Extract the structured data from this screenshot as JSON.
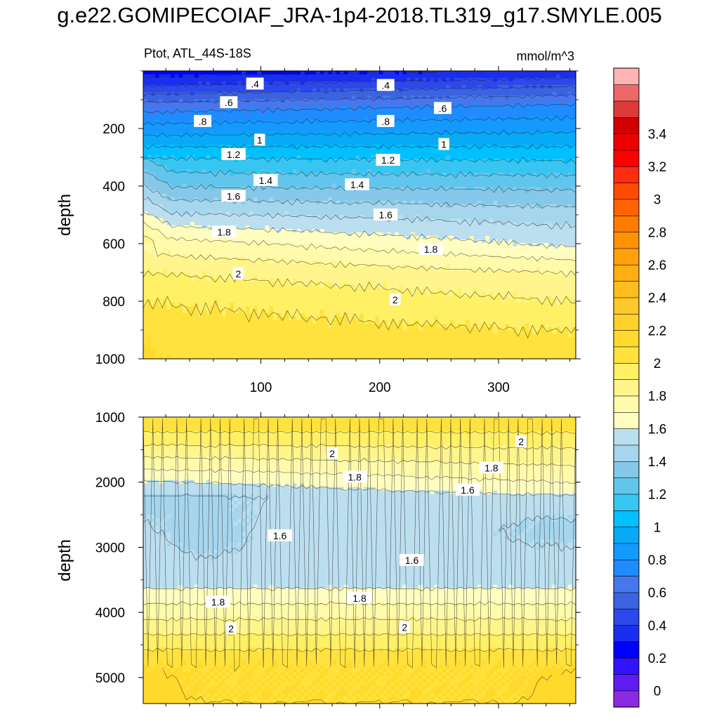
{
  "title": "g.e22.GOMIPECOIAF_JRA-1p4-2018.TL319_g17.SMYLE.005",
  "chart_data": {
    "type": "contour",
    "variable_label": "Ptot, ATL_44S-18S",
    "units": "mmol/m^3",
    "x_range": [
      1,
      365
    ],
    "upper_panel": {
      "ylabel": "depth",
      "ylim": [
        0,
        1000
      ],
      "y_reversed": true,
      "y_ticks": [
        "200",
        "400",
        "600",
        "800",
        "1000"
      ],
      "x_ticks": [
        "100",
        "200",
        "300"
      ],
      "profile_at_x10": [
        {
          "depth": 10,
          "value": 0.35
        },
        {
          "depth": 50,
          "value": 0.5
        },
        {
          "depth": 120,
          "value": 0.75
        },
        {
          "depth": 200,
          "value": 0.95
        },
        {
          "depth": 300,
          "value": 1.2
        },
        {
          "depth": 400,
          "value": 1.4
        },
        {
          "depth": 500,
          "value": 1.62
        },
        {
          "depth": 600,
          "value": 1.85
        },
        {
          "depth": 700,
          "value": 2.0
        },
        {
          "depth": 800,
          "value": 2.1
        },
        {
          "depth": 900,
          "value": 2.15
        },
        {
          "depth": 1000,
          "value": 2.18
        }
      ],
      "contour_labels": [
        {
          "text": ".4",
          "x": 95,
          "depth": 45
        },
        {
          "text": ".4",
          "x": 205,
          "depth": 50
        },
        {
          "text": ".6",
          "x": 73,
          "depth": 110
        },
        {
          "text": ".6",
          "x": 253,
          "depth": 130
        },
        {
          "text": ".8",
          "x": 51,
          "depth": 175
        },
        {
          "text": ".8",
          "x": 205,
          "depth": 175
        },
        {
          "text": "1",
          "x": 99,
          "depth": 240
        },
        {
          "text": "1",
          "x": 254,
          "depth": 255
        },
        {
          "text": "1.2",
          "x": 77,
          "depth": 290
        },
        {
          "text": "1.2",
          "x": 207,
          "depth": 310
        },
        {
          "text": "1.4",
          "x": 104,
          "depth": 380
        },
        {
          "text": "1.4",
          "x": 181,
          "depth": 395
        },
        {
          "text": "1.6",
          "x": 77,
          "depth": 435
        },
        {
          "text": "1.6",
          "x": 205,
          "depth": 500
        },
        {
          "text": "1.8",
          "x": 69,
          "depth": 560
        },
        {
          "text": "1.8",
          "x": 243,
          "depth": 620
        },
        {
          "text": "2",
          "x": 81,
          "depth": 705
        },
        {
          "text": "2",
          "x": 213,
          "depth": 795
        }
      ]
    },
    "lower_panel": {
      "ylabel": "depth",
      "ylim": [
        1000,
        5400
      ],
      "y_reversed": true,
      "y_ticks": [
        "1000",
        "2000",
        "3000",
        "4000",
        "5000"
      ],
      "contour_labels": [
        {
          "text": "2",
          "x": 319,
          "depth": 1380
        },
        {
          "text": "2",
          "x": 160,
          "depth": 1560
        },
        {
          "text": "1.8",
          "x": 294,
          "depth": 1780
        },
        {
          "text": "1.8",
          "x": 179,
          "depth": 1920
        },
        {
          "text": "1.6",
          "x": 274,
          "depth": 2120
        },
        {
          "text": "1.6",
          "x": 116,
          "depth": 2820
        },
        {
          "text": "1.6",
          "x": 227,
          "depth": 3200
        },
        {
          "text": "1.8",
          "x": 64,
          "depth": 3840
        },
        {
          "text": "1.8",
          "x": 183,
          "depth": 3780
        },
        {
          "text": "2",
          "x": 75,
          "depth": 4250
        },
        {
          "text": "2",
          "x": 221,
          "depth": 4230
        }
      ]
    },
    "colorbar": {
      "labels": [
        "3.4",
        "3.2",
        "3",
        "2.8",
        "2.6",
        "2.4",
        "2.2",
        "2",
        "1.8",
        "1.6",
        "1.4",
        "1.2",
        "1",
        "0.8",
        "0.6",
        "0.4",
        "0.2",
        "0"
      ],
      "levels_min": 0,
      "level_step": 0.1,
      "colors": [
        "#8a2be2",
        "#5f1bf2",
        "#3212ff",
        "#0000ff",
        "#1a2eee",
        "#2d48ea",
        "#3b62e0",
        "#4677ec",
        "#1e8cff",
        "#1499ff",
        "#06aaf7",
        "#00c0ff",
        "#37c6f2",
        "#62c6ec",
        "#86c8ea",
        "#a6d6ee",
        "#bcdff0",
        "#fffec0",
        "#fffbaa",
        "#fff58c",
        "#fff066",
        "#ffe23d",
        "#ffda2c",
        "#ffd12a",
        "#ffc82a",
        "#ffbe1e",
        "#ffb010",
        "#ffa20a",
        "#ff9400",
        "#ff7c00",
        "#ff6400",
        "#ff4b00",
        "#ff2d10",
        "#ff0000",
        "#ee0000",
        "#d20000",
        "#dd3a3a",
        "#ee6868",
        "#ffb4b4"
      ]
    }
  }
}
